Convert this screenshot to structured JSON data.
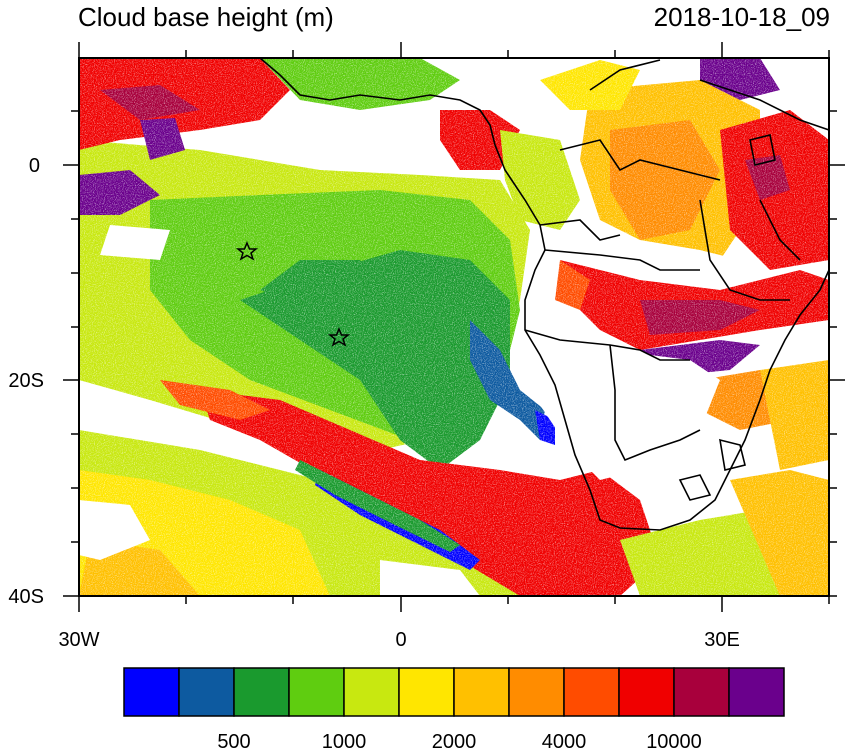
{
  "title": "Cloud base height (m)",
  "timestamp": "2018-10-18_09",
  "map": {
    "lon_range": [
      -30,
      40
    ],
    "lat_range": [
      -40,
      10
    ],
    "lon_ticks": [
      "30W",
      "0",
      "30E"
    ],
    "lat_ticks": [
      "0",
      "20S",
      "40S"
    ],
    "markers": [
      {
        "name": "station-star-1",
        "lon": -14.5,
        "lat": -8
      },
      {
        "name": "station-star-2",
        "lon": -5.7,
        "lat": -16
      }
    ]
  },
  "colorbar": {
    "colors": [
      "#0000ff",
      "#0d5aa0",
      "#1a9a2e",
      "#5fcd10",
      "#c8e810",
      "#ffe600",
      "#ffc000",
      "#ff8c00",
      "#ff4c00",
      "#f00000",
      "#a8003c",
      "#6a008c"
    ],
    "labels": [
      {
        "text": "500",
        "index": 2
      },
      {
        "text": "1000",
        "index": 4
      },
      {
        "text": "2000",
        "index": 6
      },
      {
        "text": "4000",
        "index": 8
      },
      {
        "text": "10000",
        "index": 10
      }
    ]
  }
}
